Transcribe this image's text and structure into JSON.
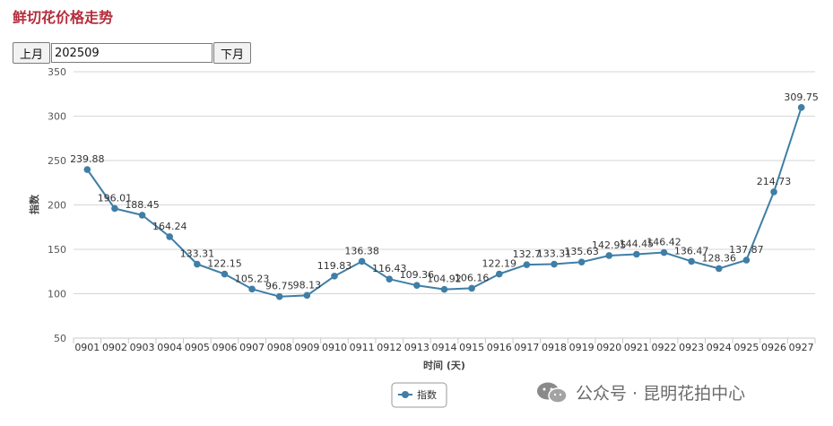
{
  "page": {
    "title": "鲜切花价格走势"
  },
  "controls": {
    "prev_label": "上月",
    "month_value": "202509",
    "next_label": "下月"
  },
  "watermark": {
    "text": "公众号 · 昆明花拍中心",
    "icon": "wechat-icon"
  },
  "colors": {
    "title": "#b32d3c",
    "series": "#3f7ea6",
    "grid": "#d6d6d6"
  },
  "chart_data": {
    "type": "line",
    "categories": [
      "0901",
      "0902",
      "0903",
      "0904",
      "0905",
      "0906",
      "0907",
      "0908",
      "0909",
      "0910",
      "0911",
      "0912",
      "0913",
      "0914",
      "0915",
      "0916",
      "0917",
      "0918",
      "0919",
      "0920",
      "0921",
      "0922",
      "0923",
      "0924",
      "0925",
      "0926",
      "0927"
    ],
    "series": [
      {
        "name": "指数",
        "values": [
          239.88,
          196.01,
          188.45,
          164.24,
          133.31,
          122.15,
          105.23,
          96.75,
          98.13,
          119.83,
          136.38,
          116.43,
          109.36,
          104.92,
          106.16,
          122.19,
          132.7,
          133.31,
          135.63,
          142.95,
          144.45,
          146.42,
          136.47,
          128.36,
          137.87,
          214.73,
          309.75
        ],
        "labels": [
          "239.88",
          "196.01",
          "188.45",
          "164.24",
          "133.31",
          "122.15",
          "105.23",
          "96.75",
          "98.13",
          "119.83",
          "136.38",
          "116.43",
          "109.36",
          "104.92",
          "106.16",
          "122.19",
          "132.7",
          "133.31",
          "135.63",
          "142.95",
          "144.45",
          "146.42",
          "136.47",
          "128.36",
          "137.87",
          "214.73",
          "309.75"
        ]
      }
    ],
    "yticks": [
      50,
      100,
      150,
      200,
      250,
      300,
      350
    ],
    "ylim": [
      50,
      350
    ],
    "xlabel": "时间 (天)",
    "ylabel": "指数",
    "grid": true,
    "legend": {
      "position": "bottom-center"
    }
  }
}
